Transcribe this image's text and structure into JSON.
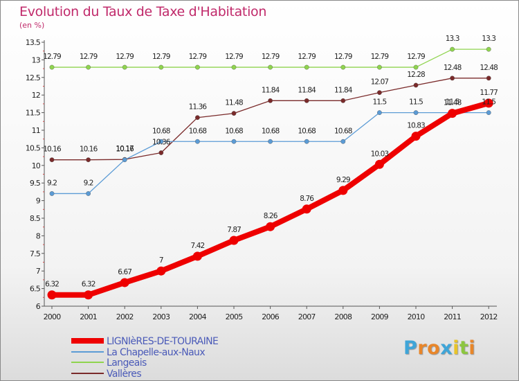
{
  "chart_data": {
    "type": "line",
    "title": "Evolution du Taux de Taxe d'Habitation",
    "subtitle": "(en %)",
    "x": [
      "2000",
      "2001",
      "2002",
      "2003",
      "2004",
      "2005",
      "2006",
      "2007",
      "2008",
      "2009",
      "2010",
      "2011",
      "2012"
    ],
    "ylim": [
      6,
      13.5
    ],
    "yticks": [
      "6",
      "6.5",
      "7",
      "7.5",
      "8",
      "8.5",
      "9",
      "9.5",
      "10",
      "10.5",
      "11",
      "11.5",
      "12",
      "12.5",
      "13",
      "13.5"
    ],
    "grid": false,
    "legend_position": "bottom-left",
    "series": [
      {
        "name": "LIGNIèRES-DE-TOURAINE",
        "color": "#ee0000",
        "values": [
          6.32,
          6.32,
          6.67,
          7,
          7.42,
          7.87,
          8.26,
          8.76,
          9.29,
          10.03,
          10.83,
          11.48,
          11.77
        ],
        "labels": [
          "6.32",
          "6.32",
          "6.67",
          "7",
          "7.42",
          "7.87",
          "8.26",
          "8.76",
          "9.29",
          "10.03",
          "10.83",
          "11.48",
          "11.77"
        ]
      },
      {
        "name": "La Chapelle-aux-Naux",
        "color": "#5b9bd5",
        "values": [
          9.2,
          9.2,
          10.16,
          10.68,
          10.68,
          10.68,
          10.68,
          10.68,
          10.68,
          11.5,
          11.5,
          11.5,
          11.5
        ],
        "labels": [
          "9.2",
          "9.2",
          "10.16",
          "10.68",
          "10.68",
          "10.68",
          "10.68",
          "10.68",
          "10.68",
          "11.5",
          "11.5",
          "11.5",
          "11.5"
        ]
      },
      {
        "name": "Langeais",
        "color": "#8fd44e",
        "values": [
          12.79,
          12.79,
          12.79,
          12.79,
          12.79,
          12.79,
          12.79,
          12.79,
          12.79,
          12.79,
          12.79,
          13.3,
          13.3
        ],
        "labels": [
          "12.79",
          "12.79",
          "12.79",
          "12.79",
          "12.79",
          "12.79",
          "12.79",
          "12.79",
          "12.79",
          "12.79",
          "12.79",
          "13.3",
          "13.3"
        ]
      },
      {
        "name": "Vallères",
        "color": "#7a2a2a",
        "values": [
          10.16,
          10.16,
          10.17,
          10.36,
          11.36,
          11.48,
          11.84,
          11.84,
          11.84,
          12.07,
          12.28,
          12.48,
          12.48
        ],
        "labels": [
          "10.16",
          "10.16",
          "10.17",
          "10.36",
          "11.36",
          "11.48",
          "11.84",
          "11.84",
          "11.84",
          "12.07",
          "12.28",
          "12.48",
          "12.48"
        ]
      }
    ]
  },
  "logo": {
    "text": "Proxiti",
    "letters": [
      "P",
      "r",
      "o",
      "x",
      "i",
      "t",
      "i"
    ],
    "colors": [
      "#3fa5d8",
      "#e8862a",
      "#e8862a",
      "#3fa5d8",
      "#e8c42a",
      "#8cc63f",
      "#e8862a"
    ]
  }
}
